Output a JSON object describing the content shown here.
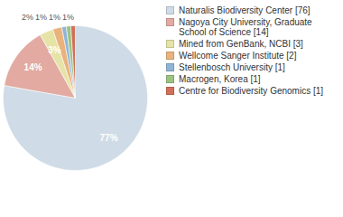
{
  "chart_data": {
    "type": "pie",
    "categories": [
      "Naturalis Biodiversity Center [76]",
      "Nagoya City University, Graduate School of Science [14]",
      "Mined from GenBank, NCBI [3]",
      "Wellcome Sanger Institute [2]",
      "Stellenbosch University [1]",
      "Macrogen, Korea [1]",
      "Centre for Biodiversity Genomics [1]"
    ],
    "values": [
      77,
      14,
      3,
      2,
      1,
      1,
      1
    ],
    "value_labels": [
      "77%",
      "14%",
      "3%",
      "2%",
      "1%",
      "1%",
      "1%"
    ],
    "colors": [
      "#cfdbe6",
      "#e2aaa1",
      "#e6e3a6",
      "#eab27c",
      "#8fb4d6",
      "#9cc380",
      "#d36f59"
    ],
    "data_labels": true,
    "legend": "right"
  }
}
